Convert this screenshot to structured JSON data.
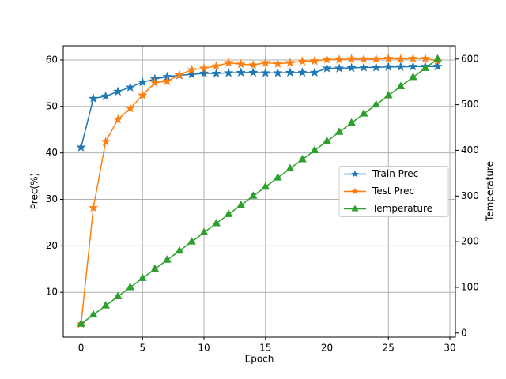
{
  "chart_data": {
    "type": "line",
    "xlabel": "Epoch",
    "ylabel": "Prec(%)",
    "y2label": "Temperature",
    "ylabel_color": "#ff7f0e",
    "y2label_color": "#2ca02c",
    "x": [
      0,
      1,
      2,
      3,
      4,
      5,
      6,
      7,
      8,
      9,
      10,
      11,
      12,
      13,
      14,
      15,
      16,
      17,
      18,
      19,
      20,
      21,
      22,
      23,
      24,
      25,
      26,
      27,
      28,
      29
    ],
    "series": [
      {
        "name": "Train Prec",
        "color": "#1f77b4",
        "marker": "star",
        "values": [
          41.2,
          51.7,
          52.2,
          53.2,
          54.1,
          55.2,
          55.9,
          56.4,
          56.7,
          56.9,
          57.1,
          57.1,
          57.2,
          57.3,
          57.3,
          57.2,
          57.2,
          57.3,
          57.3,
          57.3,
          58.2,
          58.2,
          58.3,
          58.4,
          58.4,
          58.5,
          58.5,
          58.6,
          58.6,
          58.6
        ]
      },
      {
        "name": "Test Prec",
        "color": "#ff7f0e",
        "marker": "star",
        "values": [
          3.2,
          28.2,
          42.4,
          47.2,
          49.6,
          52.4,
          55.1,
          55.4,
          56.8,
          57.9,
          58.2,
          58.7,
          59.4,
          59.1,
          58.9,
          59.4,
          59.2,
          59.4,
          59.7,
          59.8,
          60.1,
          60.1,
          60.2,
          60.2,
          60.2,
          60.3,
          60.2,
          60.3,
          60.3,
          59.8
        ]
      },
      {
        "name": "Temperature",
        "color": "#2ca02c",
        "marker": "triangle",
        "axis": "y2",
        "values": [
          20,
          40,
          60,
          80,
          100,
          120,
          140,
          160,
          180,
          200,
          220,
          240,
          260,
          280,
          300,
          320,
          340,
          360,
          380,
          400,
          420,
          440,
          460,
          480,
          500,
          520,
          540,
          560,
          580,
          600
        ]
      }
    ],
    "xlim": [
      -1.45,
      30.45
    ],
    "xticks": [
      0,
      5,
      10,
      15,
      20,
      25,
      30
    ],
    "ylim": [
      0.35,
      63.05
    ],
    "yticks": [
      10,
      20,
      30,
      40,
      50,
      60
    ],
    "y2lim": [
      -9,
      629
    ],
    "y2ticks": [
      0,
      100,
      200,
      300,
      400,
      500,
      600
    ],
    "grid": true,
    "legend": "center right"
  }
}
